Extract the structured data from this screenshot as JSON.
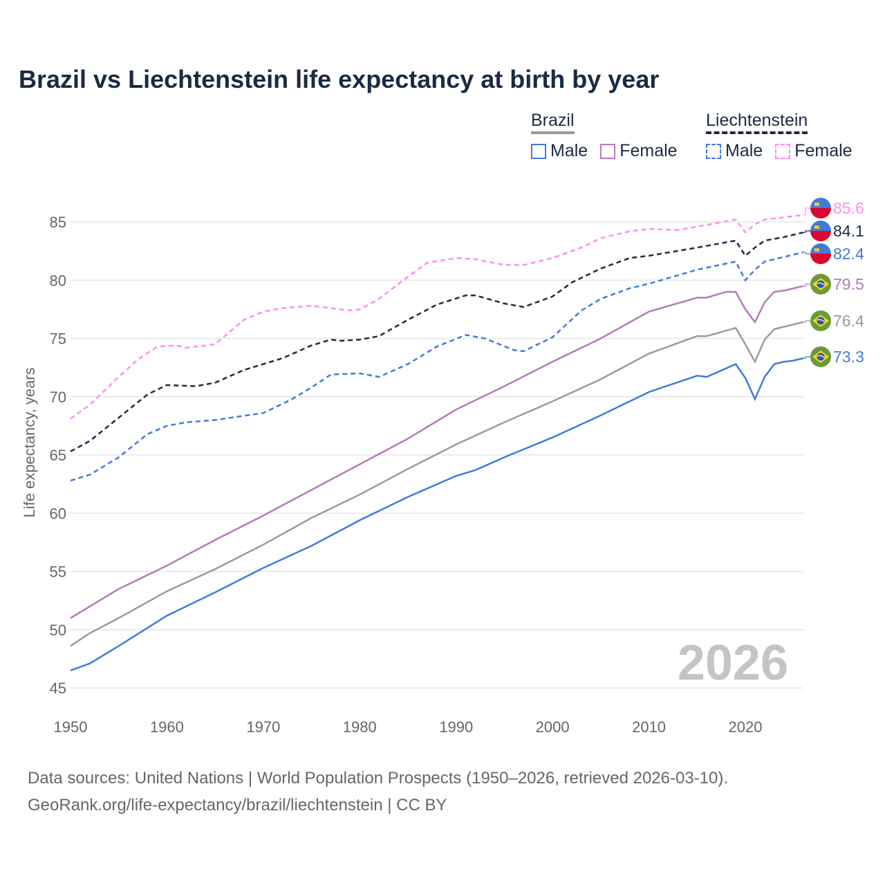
{
  "title": "Brazil vs Liechtenstein life expectancy at birth by year",
  "legend": {
    "groups": [
      {
        "name": "Brazil",
        "style": "solid",
        "items": [
          {
            "label": "Male",
            "color": "#3f7bd9"
          },
          {
            "label": "Female",
            "color": "#b47ab8"
          }
        ]
      },
      {
        "name": "Liechtenstein",
        "style": "dashed",
        "items": [
          {
            "label": "Male",
            "color": "#3f7bd9"
          },
          {
            "label": "Female",
            "color": "#ff8df2"
          }
        ]
      }
    ]
  },
  "watermark_year": "2026",
  "source_lines": [
    "Data sources: United Nations | World Population Prospects (1950–2026, retrieved 2026-03-10).",
    "GeoRank.org/life-expectancy/brazil/liechtenstein | CC BY"
  ],
  "chart_data": {
    "type": "line",
    "title": "Brazil vs Liechtenstein life expectancy at birth by year",
    "xlabel": "",
    "ylabel": "Life expectancy, years",
    "xlim": [
      1950,
      2026
    ],
    "ylim": [
      45,
      87
    ],
    "xticks": [
      1950,
      1960,
      1970,
      1980,
      1990,
      2000,
      2010,
      2020
    ],
    "yticks": [
      45,
      50,
      55,
      60,
      65,
      70,
      75,
      80,
      85
    ],
    "grid": "horizontal",
    "legend_position": "top-right",
    "series": [
      {
        "name": "Liechtenstein Female",
        "country": "Liechtenstein",
        "color": "#ff8df2",
        "dash": true,
        "end_label": "85.6",
        "points": [
          [
            1950,
            68.1
          ],
          [
            1952,
            69.3
          ],
          [
            1955,
            71.7
          ],
          [
            1957,
            73.2
          ],
          [
            1959,
            74.3
          ],
          [
            1961,
            74.4
          ],
          [
            1962,
            74.2
          ],
          [
            1965,
            74.5
          ],
          [
            1966,
            75.2
          ],
          [
            1968,
            76.6
          ],
          [
            1970,
            77.3
          ],
          [
            1972,
            77.6
          ],
          [
            1975,
            77.8
          ],
          [
            1977,
            77.6
          ],
          [
            1979,
            77.4
          ],
          [
            1980,
            77.5
          ],
          [
            1982,
            78.4
          ],
          [
            1985,
            80.3
          ],
          [
            1987,
            81.5
          ],
          [
            1990,
            81.9
          ],
          [
            1992,
            81.8
          ],
          [
            1995,
            81.3
          ],
          [
            1997,
            81.3
          ],
          [
            2000,
            81.9
          ],
          [
            2003,
            82.8
          ],
          [
            2005,
            83.6
          ],
          [
            2008,
            84.2
          ],
          [
            2010,
            84.4
          ],
          [
            2013,
            84.3
          ],
          [
            2015,
            84.6
          ],
          [
            2019,
            85.2
          ],
          [
            2020,
            84.1
          ],
          [
            2021,
            84.8
          ],
          [
            2022,
            85.2
          ],
          [
            2024,
            85.4
          ],
          [
            2026,
            85.6
          ]
        ]
      },
      {
        "name": "Liechtenstein Total",
        "country": "Liechtenstein",
        "color": "#1b2a44",
        "dash": true,
        "end_label": "84.1",
        "points": [
          [
            1950,
            65.3
          ],
          [
            1952,
            66.2
          ],
          [
            1955,
            68.2
          ],
          [
            1958,
            70.2
          ],
          [
            1960,
            71.0
          ],
          [
            1963,
            70.9
          ],
          [
            1965,
            71.2
          ],
          [
            1968,
            72.3
          ],
          [
            1970,
            72.8
          ],
          [
            1972,
            73.3
          ],
          [
            1975,
            74.4
          ],
          [
            1977,
            74.9
          ],
          [
            1978,
            74.8
          ],
          [
            1980,
            74.9
          ],
          [
            1982,
            75.2
          ],
          [
            1985,
            76.6
          ],
          [
            1988,
            77.9
          ],
          [
            1991,
            78.7
          ],
          [
            1992,
            78.7
          ],
          [
            1995,
            78.0
          ],
          [
            1997,
            77.7
          ],
          [
            2000,
            78.6
          ],
          [
            2002,
            79.8
          ],
          [
            2005,
            81.0
          ],
          [
            2008,
            81.9
          ],
          [
            2010,
            82.1
          ],
          [
            2015,
            82.8
          ],
          [
            2019,
            83.4
          ],
          [
            2020,
            82.1
          ],
          [
            2021,
            82.8
          ],
          [
            2022,
            83.4
          ],
          [
            2024,
            83.7
          ],
          [
            2026,
            84.1
          ]
        ]
      },
      {
        "name": "Liechtenstein Male",
        "country": "Liechtenstein",
        "color": "#3f7bd9",
        "dash": true,
        "end_label": "82.4",
        "points": [
          [
            1950,
            62.8
          ],
          [
            1952,
            63.3
          ],
          [
            1955,
            64.8
          ],
          [
            1958,
            66.8
          ],
          [
            1960,
            67.5
          ],
          [
            1962,
            67.8
          ],
          [
            1965,
            68.0
          ],
          [
            1970,
            68.6
          ],
          [
            1973,
            69.8
          ],
          [
            1975,
            70.8
          ],
          [
            1977,
            71.9
          ],
          [
            1980,
            72.0
          ],
          [
            1982,
            71.7
          ],
          [
            1985,
            72.8
          ],
          [
            1988,
            74.3
          ],
          [
            1991,
            75.3
          ],
          [
            1993,
            75.0
          ],
          [
            1996,
            74.0
          ],
          [
            1997,
            73.9
          ],
          [
            2000,
            75.1
          ],
          [
            2003,
            77.4
          ],
          [
            2005,
            78.4
          ],
          [
            2008,
            79.3
          ],
          [
            2010,
            79.7
          ],
          [
            2015,
            80.9
          ],
          [
            2019,
            81.6
          ],
          [
            2020,
            80.0
          ],
          [
            2021,
            80.9
          ],
          [
            2022,
            81.6
          ],
          [
            2024,
            82.0
          ],
          [
            2026,
            82.4
          ]
        ]
      },
      {
        "name": "Brazil Female",
        "country": "Brazil",
        "color": "#b47ab8",
        "dash": false,
        "end_label": "79.5",
        "points": [
          [
            1950,
            51.0
          ],
          [
            1952,
            52.0
          ],
          [
            1955,
            53.5
          ],
          [
            1960,
            55.5
          ],
          [
            1965,
            57.7
          ],
          [
            1970,
            59.8
          ],
          [
            1975,
            62.0
          ],
          [
            1980,
            64.2
          ],
          [
            1985,
            66.4
          ],
          [
            1990,
            68.9
          ],
          [
            1995,
            70.9
          ],
          [
            2000,
            73.0
          ],
          [
            2005,
            75.0
          ],
          [
            2010,
            77.3
          ],
          [
            2015,
            78.5
          ],
          [
            2016,
            78.5
          ],
          [
            2018,
            79.0
          ],
          [
            2019,
            79.0
          ],
          [
            2020,
            77.5
          ],
          [
            2021,
            76.4
          ],
          [
            2022,
            78.1
          ],
          [
            2023,
            79.0
          ],
          [
            2024,
            79.1
          ],
          [
            2026,
            79.5
          ]
        ]
      },
      {
        "name": "Brazil Total",
        "country": "Brazil",
        "color": "#9a9a9a",
        "dash": false,
        "end_label": "76.4",
        "points": [
          [
            1950,
            48.6
          ],
          [
            1952,
            49.7
          ],
          [
            1955,
            51.0
          ],
          [
            1960,
            53.3
          ],
          [
            1965,
            55.2
          ],
          [
            1970,
            57.3
          ],
          [
            1975,
            59.6
          ],
          [
            1980,
            61.6
          ],
          [
            1985,
            63.8
          ],
          [
            1990,
            65.9
          ],
          [
            1995,
            67.8
          ],
          [
            2000,
            69.6
          ],
          [
            2005,
            71.5
          ],
          [
            2010,
            73.7
          ],
          [
            2015,
            75.2
          ],
          [
            2016,
            75.2
          ],
          [
            2019,
            75.9
          ],
          [
            2020,
            74.5
          ],
          [
            2021,
            73.0
          ],
          [
            2022,
            74.9
          ],
          [
            2023,
            75.8
          ],
          [
            2024,
            76.0
          ],
          [
            2026,
            76.4
          ]
        ]
      },
      {
        "name": "Brazil Male",
        "country": "Brazil",
        "color": "#3f7bd9",
        "dash": false,
        "end_label": "73.3",
        "points": [
          [
            1950,
            46.5
          ],
          [
            1952,
            47.1
          ],
          [
            1955,
            48.6
          ],
          [
            1960,
            51.2
          ],
          [
            1965,
            53.2
          ],
          [
            1970,
            55.3
          ],
          [
            1975,
            57.2
          ],
          [
            1980,
            59.4
          ],
          [
            1985,
            61.4
          ],
          [
            1990,
            63.2
          ],
          [
            1992,
            63.7
          ],
          [
            1995,
            64.8
          ],
          [
            2000,
            66.5
          ],
          [
            2005,
            68.4
          ],
          [
            2010,
            70.4
          ],
          [
            2015,
            71.8
          ],
          [
            2016,
            71.7
          ],
          [
            2019,
            72.8
          ],
          [
            2020,
            71.6
          ],
          [
            2021,
            69.8
          ],
          [
            2022,
            71.7
          ],
          [
            2023,
            72.8
          ],
          [
            2024,
            73.0
          ],
          [
            2025,
            73.1
          ],
          [
            2026,
            73.3
          ]
        ]
      }
    ]
  }
}
